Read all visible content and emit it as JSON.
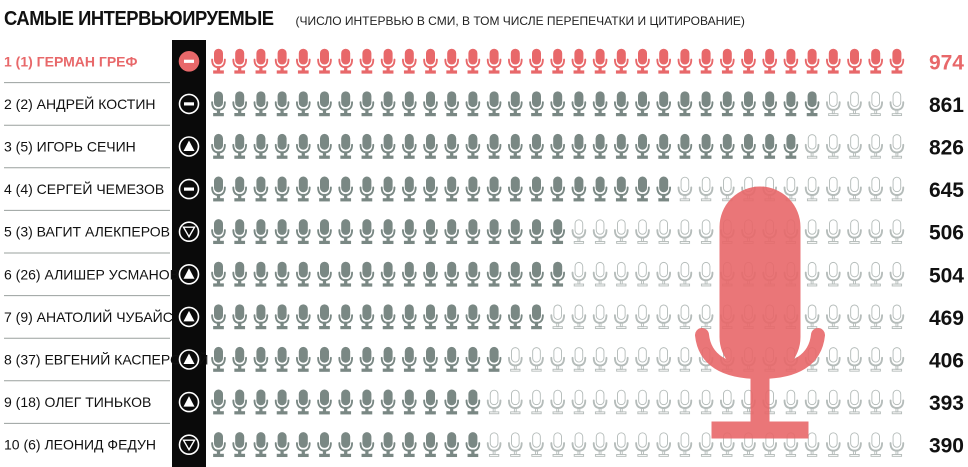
{
  "colors": {
    "highlight": "#e8686a",
    "filled": "#7a8884",
    "empty_stroke": "#b5bcba",
    "strip": "#0a0a0a"
  },
  "chart_data": {
    "type": "bar",
    "title": "САМЫЕ ИНТЕРВЬЮИРУЕМЫЕ",
    "subtitle": "(ЧИСЛО ИНТЕРВЬЮ В СМИ, В ТОМ ЧИСЛЕ ПЕРЕПЕЧАТКИ И ЦИТИРОВАНИЕ)",
    "icon": "microphone-icon",
    "rows": [
      {
        "rank": "1 (1)",
        "name": "ГЕРМАН ГРЕФ",
        "trend": "same",
        "value": 974,
        "value_label": "974",
        "highlight": true
      },
      {
        "rank": "2 (2)",
        "name": "АНДРЕЙ КОСТИН",
        "trend": "same",
        "value": 861,
        "value_label": "861",
        "highlight": false
      },
      {
        "rank": "3 (5)",
        "name": "ИГОРЬ СЕЧИН",
        "trend": "up",
        "value": 826,
        "value_label": "826",
        "highlight": false
      },
      {
        "rank": "4 (4)",
        "name": "СЕРГЕЙ ЧЕМЕЗОВ",
        "trend": "same",
        "value": 645,
        "value_label": "645",
        "highlight": false
      },
      {
        "rank": "5 (3)",
        "name": "ВАГИТ АЛЕКПЕРОВ",
        "trend": "down",
        "value": 506,
        "value_label": "506",
        "highlight": false
      },
      {
        "rank": "6 (26)",
        "name": "АЛИШЕР УСМАНОВ",
        "trend": "up",
        "value": 504,
        "value_label": "504",
        "highlight": false
      },
      {
        "rank": "7 (9)",
        "name": "АНАТОЛИЙ ЧУБАЙС",
        "trend": "up",
        "value": 469,
        "value_label": "469",
        "highlight": false
      },
      {
        "rank": "8 (37)",
        "name": "ЕВГЕНИЙ КАСПЕРСКИЙ",
        "trend": "up",
        "value": 406,
        "value_label": "406",
        "highlight": false
      },
      {
        "rank": "9 (18)",
        "name": "ОЛЕГ ТИНЬКОВ",
        "trend": "up",
        "value": 393,
        "value_label": "393",
        "highlight": false
      },
      {
        "rank": "10 (6)",
        "name": "ЛЕОНИД ФЕДУН",
        "trend": "down",
        "value": 390,
        "value_label": "390",
        "highlight": false
      }
    ]
  }
}
